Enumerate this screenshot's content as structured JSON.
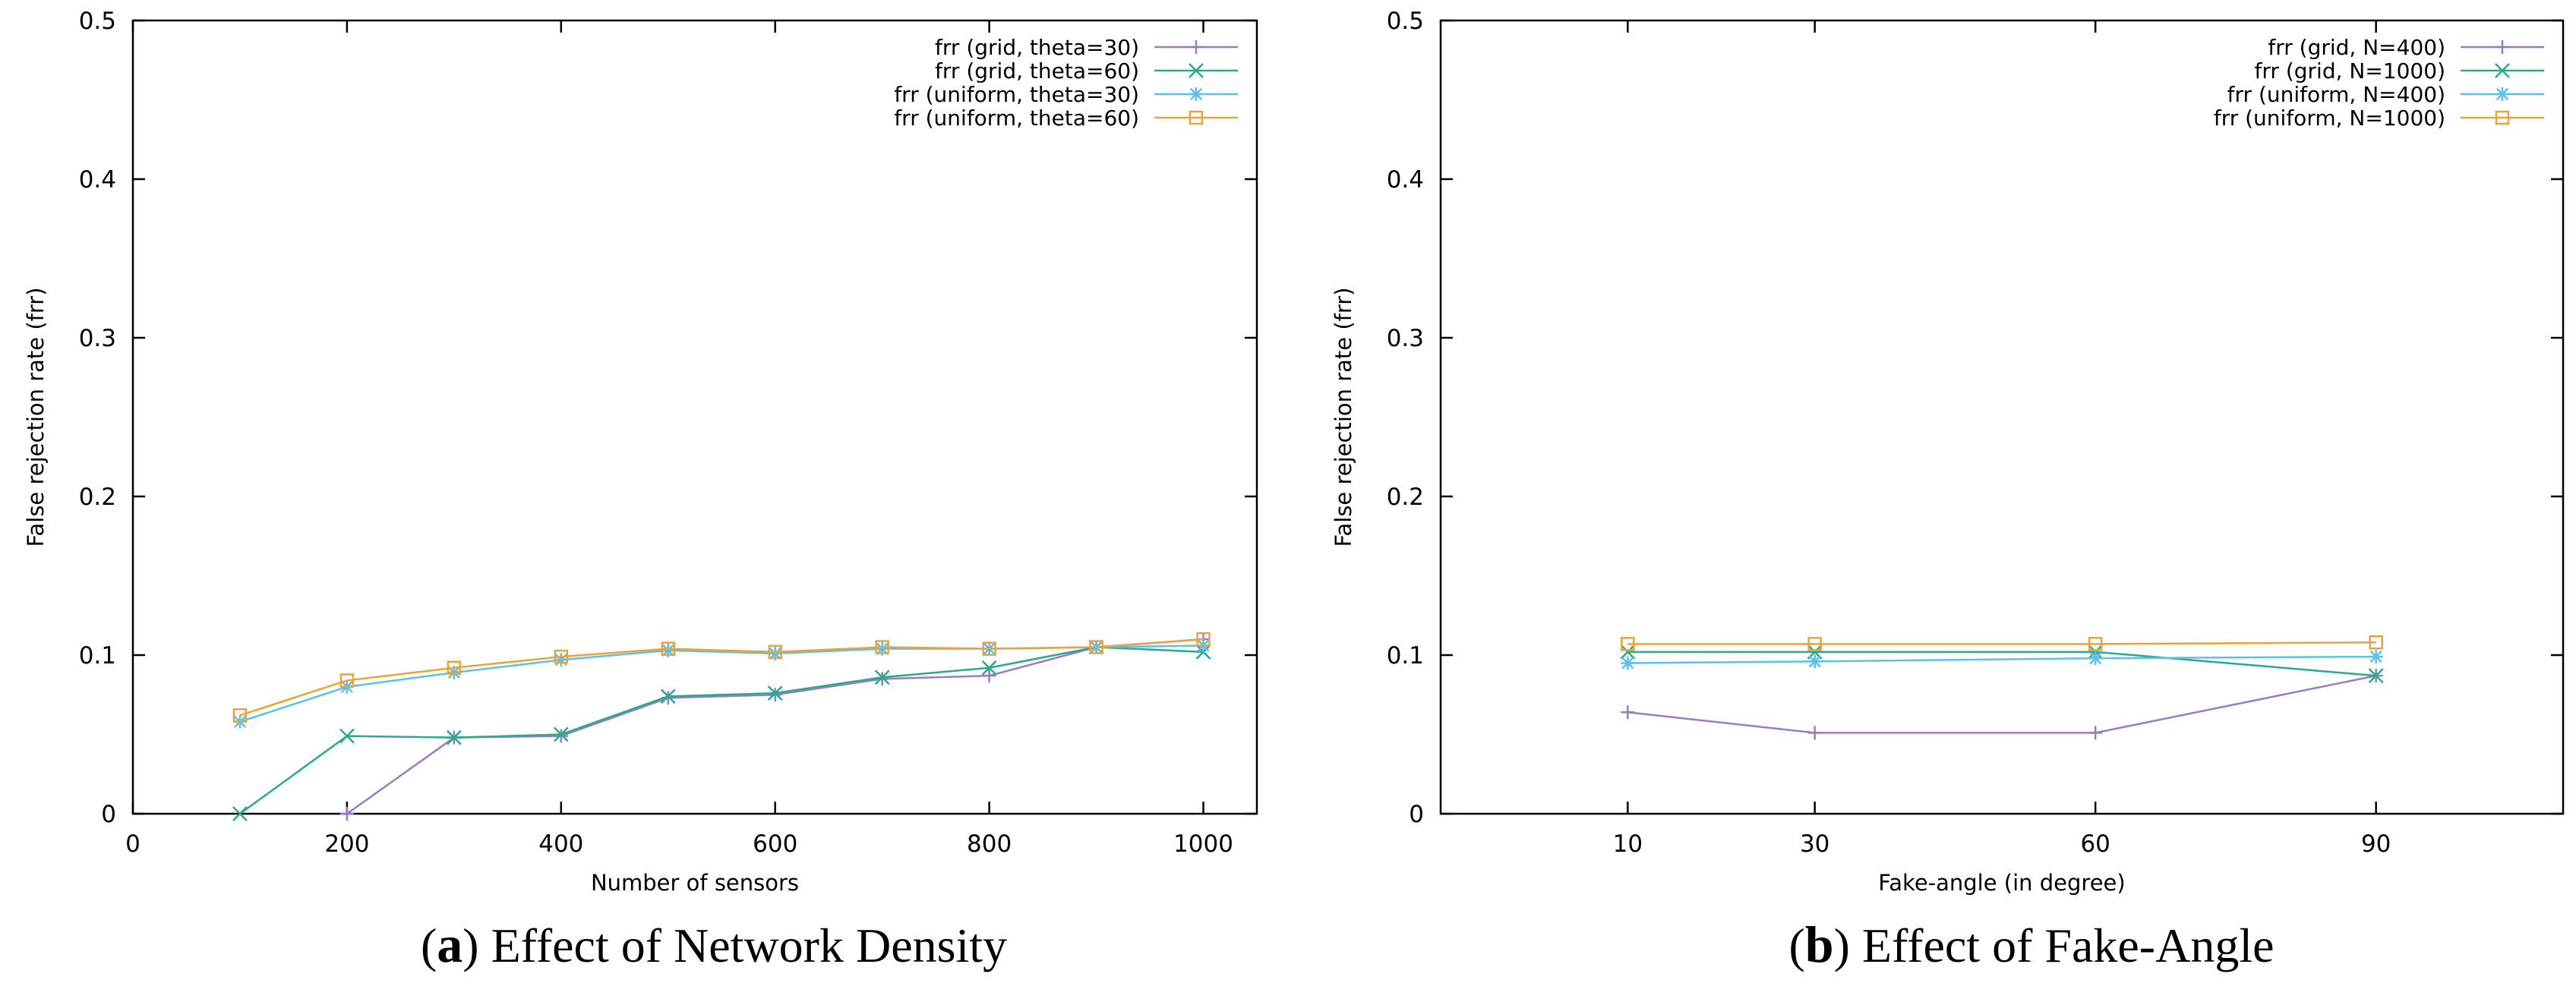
{
  "panels": [
    {
      "caption": {
        "label": "a",
        "text": "Effect of Network Density"
      }
    },
    {
      "caption": {
        "label": "b",
        "text": "Effect of Fake-Angle"
      }
    }
  ],
  "chart_data": [
    {
      "type": "line",
      "xlabel": "Number of sensors",
      "ylabel": "False rejection rate (frr)",
      "xlim": [
        0,
        1050
      ],
      "ylim": [
        0,
        0.5
      ],
      "xticks": [
        0,
        200,
        400,
        600,
        800,
        1000
      ],
      "xtick_labels": [
        "0",
        "200",
        "400",
        "600",
        "800",
        "1000"
      ],
      "yticks": [
        0,
        0.1,
        0.2,
        0.3,
        0.4,
        0.5
      ],
      "ytick_labels": [
        "0",
        "0.1",
        "0.2",
        "0.3",
        "0.4",
        "0.5"
      ],
      "legend_position": "top-right",
      "series": [
        {
          "name": "frr (grid, theta=30)",
          "color": "#9a7bc6",
          "marker": "plus",
          "x": [
            200,
            300,
            400,
            500,
            600,
            700,
            800,
            900,
            1000
          ],
          "y": [
            0.0,
            0.048,
            0.049,
            0.073,
            0.075,
            0.085,
            0.087,
            0.105,
            0.11
          ]
        },
        {
          "name": "frr (grid, theta=60)",
          "color": "#2aa98b",
          "marker": "cross",
          "x": [
            100,
            200,
            300,
            400,
            500,
            600,
            700,
            800,
            900,
            1000
          ],
          "y": [
            0.0,
            0.049,
            0.048,
            0.05,
            0.074,
            0.076,
            0.086,
            0.092,
            0.105,
            0.102
          ]
        },
        {
          "name": "frr (uniform, theta=30)",
          "color": "#5bc0eb",
          "marker": "star",
          "x": [
            100,
            200,
            300,
            400,
            500,
            600,
            700,
            800,
            900,
            1000
          ],
          "y": [
            0.058,
            0.08,
            0.089,
            0.097,
            0.103,
            0.101,
            0.104,
            0.104,
            0.105,
            0.106
          ]
        },
        {
          "name": "frr (uniform, theta=60)",
          "color": "#e8a33d",
          "marker": "square",
          "x": [
            100,
            200,
            300,
            400,
            500,
            600,
            700,
            800,
            900,
            1000
          ],
          "y": [
            0.062,
            0.084,
            0.092,
            0.099,
            0.104,
            0.102,
            0.105,
            0.104,
            0.105,
            0.11
          ]
        }
      ]
    },
    {
      "type": "line",
      "xlabel": "Fake-angle (in degree)",
      "ylabel": "False rejection rate (frr)",
      "xlim": [
        -10,
        110
      ],
      "ylim": [
        0,
        0.5
      ],
      "xticks": [
        10,
        30,
        60,
        90
      ],
      "xtick_labels": [
        "10",
        "30",
        "60",
        "90"
      ],
      "yticks": [
        0,
        0.1,
        0.2,
        0.3,
        0.4,
        0.5
      ],
      "ytick_labels": [
        "0",
        "0.1",
        "0.2",
        "0.3",
        "0.4",
        "0.5"
      ],
      "legend_position": "top-right",
      "series": [
        {
          "name": "frr (grid, N=400)",
          "color": "#9a7bc6",
          "marker": "plus",
          "x": [
            10,
            30,
            60,
            90
          ],
          "y": [
            0.064,
            0.051,
            0.051,
            0.087
          ]
        },
        {
          "name": "frr (grid, N=1000)",
          "color": "#2aa98b",
          "marker": "cross",
          "x": [
            10,
            30,
            60,
            90
          ],
          "y": [
            0.102,
            0.102,
            0.102,
            0.087
          ]
        },
        {
          "name": "frr (uniform, N=400)",
          "color": "#5bc0eb",
          "marker": "star",
          "x": [
            10,
            30,
            60,
            90
          ],
          "y": [
            0.095,
            0.096,
            0.098,
            0.099
          ]
        },
        {
          "name": "frr (uniform, N=1000)",
          "color": "#e8a33d",
          "marker": "square",
          "x": [
            10,
            30,
            60,
            90
          ],
          "y": [
            0.107,
            0.107,
            0.107,
            0.108
          ]
        }
      ]
    }
  ]
}
